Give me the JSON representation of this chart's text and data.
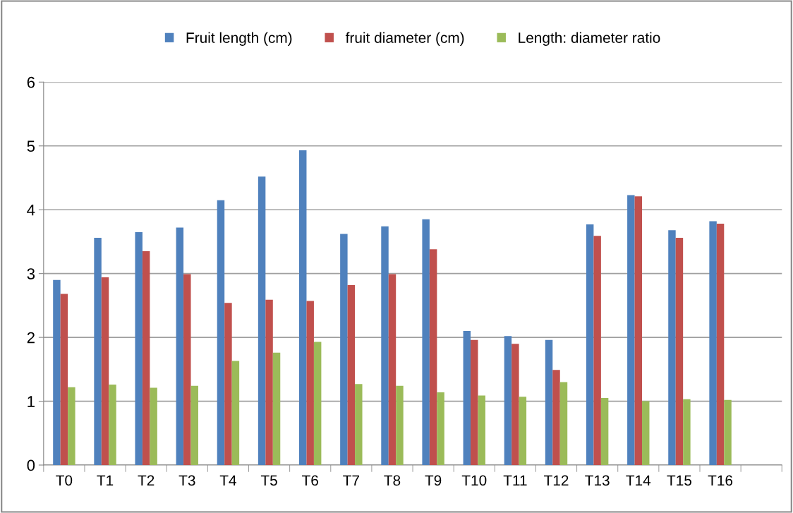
{
  "chart_data": {
    "type": "bar",
    "categories": [
      "T0",
      "T1",
      "T2",
      "T3",
      "T4",
      "T5",
      "T6",
      "T7",
      "T8",
      "T9",
      "T10",
      "T11",
      "T12",
      "T13",
      "T14",
      "T15",
      "T16",
      null
    ],
    "series": [
      {
        "name": "Fruit length (cm)",
        "color": "#4f81bd",
        "values": [
          2.9,
          3.56,
          3.65,
          3.72,
          4.15,
          4.52,
          4.93,
          3.62,
          3.74,
          3.85,
          2.1,
          2.02,
          1.96,
          3.77,
          4.23,
          3.68,
          3.82,
          null
        ]
      },
      {
        "name": "fruit diameter (cm)",
        "color": "#c0504d",
        "values": [
          2.68,
          2.94,
          3.35,
          2.99,
          2.54,
          2.59,
          2.57,
          2.82,
          2.99,
          3.38,
          1.96,
          1.9,
          1.49,
          3.59,
          4.21,
          3.56,
          3.78,
          null
        ]
      },
      {
        "name": "Length: diameter ratio",
        "color": "#9bbb59",
        "values": [
          1.22,
          1.26,
          1.21,
          1.24,
          1.63,
          1.76,
          1.93,
          1.27,
          1.24,
          1.14,
          1.09,
          1.07,
          1.3,
          1.05,
          1.0,
          1.03,
          1.02,
          null
        ]
      }
    ],
    "ylim": [
      0,
      6
    ],
    "yticks": [
      0,
      1,
      2,
      3,
      4,
      5,
      6
    ],
    "grid": "y",
    "legend": "top"
  }
}
